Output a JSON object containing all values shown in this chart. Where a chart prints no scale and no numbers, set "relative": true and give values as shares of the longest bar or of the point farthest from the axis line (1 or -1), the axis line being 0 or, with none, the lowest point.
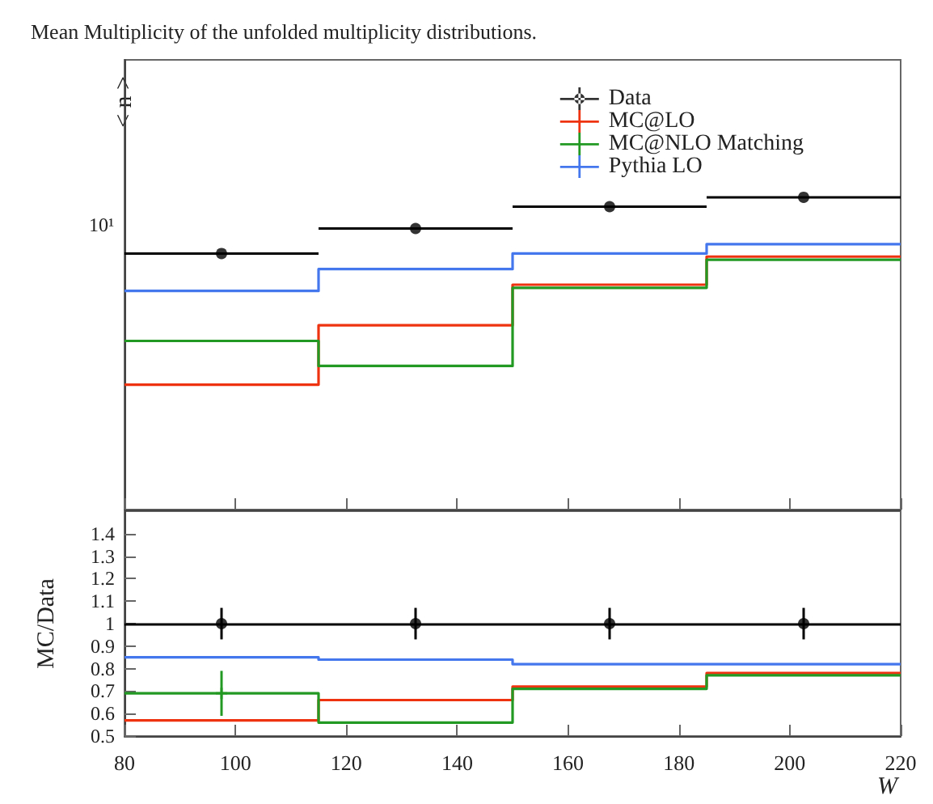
{
  "chart_data": [
    {
      "type": "line",
      "title": "Mean Multiplicity of the unfolded multiplicity distributions.",
      "ylabel": "< n >",
      "relative": true,
      "annotations": [
        "10¹"
      ],
      "xlim": [
        80,
        220
      ],
      "xticks": [
        80,
        100,
        120,
        140,
        160,
        180,
        200,
        220
      ],
      "legend": "top right",
      "tick_labels": false,
      "series": [
        {
          "name": "Data",
          "type": "scatter",
          "color": "#000000",
          "marker": "circle",
          "x": [
            97.5,
            132.5,
            167.5,
            202.5
          ],
          "values": [
            0.82,
            0.9,
            0.97,
            1
          ],
          "xerrors": [
            17.5,
            17.5,
            17.5,
            17.5
          ]
        },
        {
          "name": "MC@LO",
          "type": "step",
          "color": "#ee3311",
          "x": [
            80,
            115,
            150,
            185,
            220
          ],
          "values": [
            0.4,
            0.59,
            0.72,
            0.81,
            0.81
          ]
        },
        {
          "name": "MC@NLO Matching",
          "type": "step",
          "color": "#229922",
          "x": [
            80,
            115,
            150,
            185,
            220
          ],
          "values": [
            0.54,
            0.46,
            0.71,
            0.8,
            0.8
          ]
        },
        {
          "name": "Pythia LO",
          "type": "step",
          "color": "#4477ee",
          "x": [
            80,
            115,
            150,
            185,
            220
          ],
          "values": [
            0.7,
            0.77,
            0.82,
            0.85,
            0.85
          ]
        }
      ]
    },
    {
      "type": "line",
      "xlabel": "W",
      "ylabel": "MC/Data",
      "xlim": [
        80,
        220
      ],
      "xticks": [
        80,
        100,
        120,
        140,
        160,
        180,
        200,
        220
      ],
      "ylim": [
        0.5,
        1.5
      ],
      "yticks": [
        0.5,
        0.6,
        0.7,
        0.8,
        0.9,
        1,
        1.1,
        1.2,
        1.3,
        1.4
      ],
      "ref_lines": [
        {
          "axis": "y",
          "value": 1,
          "color": "#000000"
        }
      ],
      "series": [
        {
          "type": "scatter",
          "color": "#000000",
          "marker": "circle",
          "x": [
            97.5,
            132.5,
            167.5,
            202.5
          ],
          "values": [
            1,
            1,
            1,
            1
          ],
          "errors": [
            0.07,
            0.07,
            0.07,
            0.07
          ]
        },
        {
          "type": "step",
          "color": "#ee3311",
          "x": [
            80,
            115,
            150,
            185,
            220
          ],
          "values": [
            0.57,
            0.66,
            0.72,
            0.78,
            0.78
          ]
        },
        {
          "type": "step",
          "color": "#229922",
          "x": [
            80,
            115,
            150,
            185,
            220
          ],
          "values": [
            0.69,
            0.56,
            0.71,
            0.77,
            0.77
          ]
        },
        {
          "type": "scatter",
          "color": "#229922",
          "marker": "cross",
          "x": [
            97.5
          ],
          "values": [
            0.69
          ],
          "errors": [
            0.1
          ]
        },
        {
          "type": "step",
          "color": "#4477ee",
          "x": [
            80,
            115,
            150,
            185,
            220
          ],
          "values": [
            0.85,
            0.84,
            0.82,
            0.82,
            0.82
          ]
        }
      ]
    }
  ]
}
